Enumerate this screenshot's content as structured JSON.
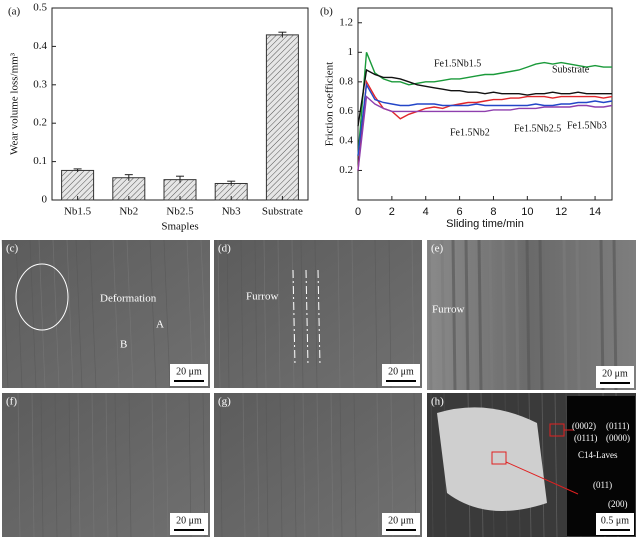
{
  "chart_data": [
    {
      "type": "bar",
      "title": "(a)",
      "xlabel": "Smaples",
      "ylabel": "Wear volume loss/mm³",
      "categories": [
        "Nb1.5",
        "Nb2",
        "Nb2.5",
        "Nb3",
        "Substrate"
      ],
      "values": [
        0.077,
        0.058,
        0.053,
        0.043,
        0.43
      ],
      "errors": [
        0.004,
        0.008,
        0.009,
        0.006,
        0.007
      ],
      "color": "#bbbbbb",
      "ylim": [
        0,
        0.5
      ],
      "yticks": [
        0,
        0.1,
        0.2,
        0.3,
        0.4,
        0.5
      ]
    },
    {
      "type": "line",
      "title": "(b)",
      "xlabel": "Sliding time/min",
      "ylabel": "Friction coefficient",
      "x": [
        0,
        0.5,
        1,
        1.5,
        2,
        2.5,
        3,
        3.5,
        4,
        4.5,
        5,
        5.5,
        6,
        6.5,
        7,
        7.5,
        8,
        8.5,
        9,
        9.5,
        10,
        10.5,
        11,
        11.5,
        12,
        12.5,
        13,
        13.5,
        14,
        14.5,
        15
      ],
      "series": [
        {
          "name": "Substrate",
          "color": "#1a9a3a",
          "values": [
            0.3,
            1.0,
            0.86,
            0.82,
            0.8,
            0.8,
            0.78,
            0.79,
            0.8,
            0.8,
            0.81,
            0.82,
            0.82,
            0.83,
            0.84,
            0.85,
            0.85,
            0.86,
            0.87,
            0.88,
            0.9,
            0.92,
            0.93,
            0.92,
            0.93,
            0.92,
            0.91,
            0.9,
            0.91,
            0.9,
            0.9
          ]
        },
        {
          "name": "Fe1.5Nb1.5",
          "color": "#111111",
          "values": [
            0.5,
            0.88,
            0.85,
            0.83,
            0.83,
            0.82,
            0.8,
            0.78,
            0.77,
            0.76,
            0.75,
            0.74,
            0.74,
            0.73,
            0.73,
            0.72,
            0.73,
            0.72,
            0.72,
            0.72,
            0.71,
            0.72,
            0.72,
            0.73,
            0.72,
            0.72,
            0.73,
            0.72,
            0.72,
            0.72,
            0.72
          ]
        },
        {
          "name": "Fe1.5Nb2",
          "color": "#e0262b",
          "values": [
            0.2,
            0.8,
            0.7,
            0.62,
            0.6,
            0.55,
            0.58,
            0.6,
            0.62,
            0.63,
            0.62,
            0.64,
            0.65,
            0.66,
            0.66,
            0.67,
            0.68,
            0.68,
            0.69,
            0.69,
            0.7,
            0.7,
            0.7,
            0.69,
            0.7,
            0.7,
            0.7,
            0.7,
            0.7,
            0.69,
            0.7
          ]
        },
        {
          "name": "Fe1.5Nb2.5",
          "color": "#2346c8",
          "values": [
            0.3,
            0.78,
            0.68,
            0.66,
            0.65,
            0.64,
            0.64,
            0.65,
            0.65,
            0.65,
            0.64,
            0.64,
            0.64,
            0.64,
            0.65,
            0.64,
            0.64,
            0.64,
            0.64,
            0.64,
            0.64,
            0.65,
            0.64,
            0.64,
            0.65,
            0.65,
            0.66,
            0.66,
            0.67,
            0.66,
            0.67
          ]
        },
        {
          "name": "Fe1.5Nb3",
          "color": "#8e3fae",
          "values": [
            0.2,
            0.7,
            0.65,
            0.62,
            0.6,
            0.6,
            0.6,
            0.6,
            0.6,
            0.6,
            0.6,
            0.6,
            0.6,
            0.6,
            0.6,
            0.6,
            0.61,
            0.61,
            0.61,
            0.62,
            0.62,
            0.62,
            0.63,
            0.63,
            0.63,
            0.63,
            0.64,
            0.64,
            0.63,
            0.63,
            0.64
          ]
        }
      ],
      "xlim": [
        0,
        15
      ],
      "xticks": [
        0,
        2,
        4,
        6,
        8,
        10,
        12,
        14
      ],
      "ylim": [
        0,
        1.3
      ],
      "yticks": [
        0.2,
        0.4,
        0.6,
        0.8,
        1.0,
        1.2
      ]
    }
  ],
  "panels": [
    {
      "label": "(c)",
      "texts": [
        "Deformation",
        "A",
        "B"
      ],
      "scale": "20 μm"
    },
    {
      "label": "(d)",
      "texts": [
        "Furrow"
      ],
      "scale": "20 μm"
    },
    {
      "label": "(e)",
      "texts": [
        "Furrow"
      ],
      "scale": "20 μm"
    },
    {
      "label": "(f)",
      "texts": [],
      "scale": "20 μm"
    },
    {
      "label": "(g)",
      "texts": [],
      "scale": "20 μm"
    },
    {
      "label": "(h)",
      "texts": [
        "(0002)",
        "(0111)",
        "(0111)",
        "(0000)",
        "C14-Laves",
        "(011)",
        "(200)"
      ],
      "scale": "0.5 μm"
    }
  ]
}
